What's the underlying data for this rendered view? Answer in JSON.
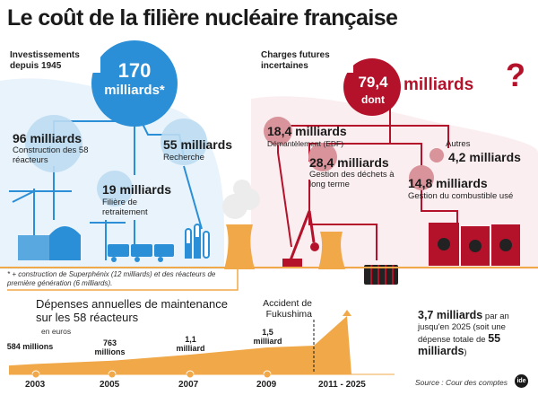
{
  "title": "Le coût de la filière nucléaire française",
  "investissements": {
    "label": "Investissements depuis 1945",
    "total_value": "170",
    "total_unit": "milliards",
    "asterisk": "*",
    "items": [
      {
        "amount": "96 milliards",
        "desc": "Construction des 58 réacteurs"
      },
      {
        "amount": "55 milliards",
        "desc": "Recherche"
      },
      {
        "amount": "19 milliards",
        "desc": "Filière de retraitement"
      }
    ],
    "footnote": "* + construction de Superphénix (12 milliards) et des réacteurs de première génération (6 milliards)."
  },
  "charges": {
    "label": "Charges futures incertaines",
    "total_value": "79,4",
    "total_unit": "milliards",
    "dont": "dont",
    "question": "?",
    "items": [
      {
        "amount": "18,4 milliards",
        "desc": "Démantèlement (EDF)"
      },
      {
        "amount": "28,4 milliards",
        "desc": "Gestion des déchets à long terme"
      },
      {
        "amount": "4,2 milliards",
        "desc": "Autres"
      },
      {
        "amount": "14,8 milliards",
        "desc": "Gestion du combustible usé"
      }
    ]
  },
  "maintenance": {
    "title": "Dépenses annuelles de maintenance sur les 58 réacteurs",
    "unit": "en euros",
    "event": "Accident de Fukushima",
    "points": [
      {
        "year": "2003",
        "label": "584 millions",
        "value_millions": 584
      },
      {
        "year": "2005",
        "label": "763 millions",
        "value_millions": 763
      },
      {
        "year": "2007",
        "label": "1,1 milliard",
        "value_millions": 1100
      },
      {
        "year": "2009",
        "label": "1,5 milliard",
        "value_millions": 1500
      }
    ],
    "future_period": "2011 - 2025",
    "future_amount": "3,7 milliards",
    "future_text": "par an jusqu'en 2025 (soit une dépense totale de",
    "future_total": "55 milliards",
    "future_close": ")"
  },
  "source": "Source : Cour des comptes",
  "logo": "ide",
  "colors": {
    "blue": "#2a8fd6",
    "blue_light": "#cfe6f6",
    "red": "#b4122a",
    "pink": "#d9939a",
    "orange": "#f0a848",
    "dark": "#1a1a1a"
  }
}
